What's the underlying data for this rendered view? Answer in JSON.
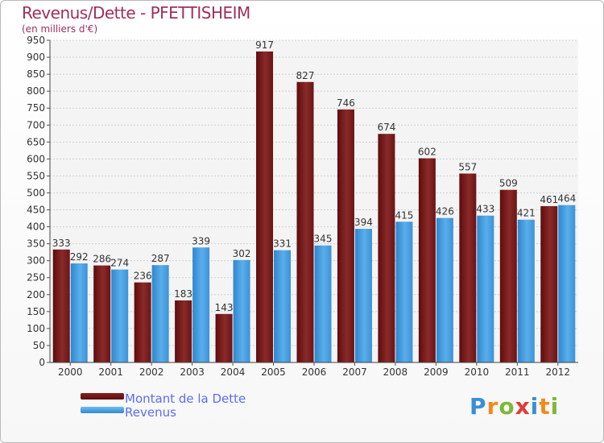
{
  "header": {
    "title": "Revenus/Dette - PFETTISHEIM",
    "subtitle": "(en milliers d'€)"
  },
  "legend": {
    "debt_label": "Montant de la Dette",
    "revenue_label": "Revenus"
  },
  "logo": {
    "letters": [
      "P",
      "r",
      "o",
      "x",
      "i",
      "t",
      "i"
    ],
    "colors": [
      "#3a8fd6",
      "#f28a1b",
      "#7cb93a",
      "#e23a3a",
      "#3a8fd6",
      "#f28a1b",
      "#7cb93a"
    ]
  },
  "colors": {
    "debt": "#7a1a1a",
    "revenue": "#4a9fe0"
  },
  "chart_data": {
    "type": "bar",
    "title": "Revenus/Dette - PFETTISHEIM",
    "ylabel": "(en milliers d'€)",
    "ylim": [
      0,
      950
    ],
    "ytick_step": 50,
    "grid": true,
    "legend_position": "bottom-left",
    "categories": [
      "2000",
      "2001",
      "2002",
      "2003",
      "2004",
      "2005",
      "2006",
      "2007",
      "2008",
      "2009",
      "2010",
      "2011",
      "2012"
    ],
    "series": [
      {
        "name": "Montant de la Dette",
        "values": [
          333,
          286,
          236,
          183,
          143,
          917,
          827,
          746,
          674,
          602,
          557,
          509,
          461
        ]
      },
      {
        "name": "Revenus",
        "values": [
          292,
          274,
          287,
          339,
          302,
          331,
          345,
          394,
          415,
          426,
          433,
          421,
          464
        ]
      }
    ]
  }
}
